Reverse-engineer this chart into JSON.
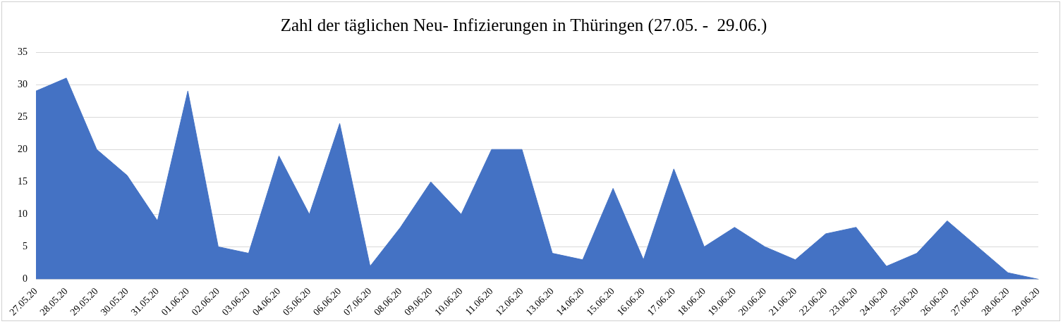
{
  "chart_data": {
    "type": "area",
    "title": "Zahl der täglichen Neu- Infizierungen in Thüringen (27.05. -  29.06.)",
    "categories": [
      "27.05.20",
      "28.05.20",
      "29.05.20",
      "30.05.20",
      "31.05.20",
      "01.06.20",
      "02.06.20",
      "03.06.20",
      "04.06.20",
      "05.06.20",
      "06.06.20",
      "07.06.20",
      "08.06.20",
      "09.06.20",
      "10.06.20",
      "11.06.20",
      "12.06.20",
      "13.06.20",
      "14.06.20",
      "15.06.20",
      "16.06.20",
      "17.06.20",
      "18.06.20",
      "19.06.20",
      "20.06.20",
      "21.06.20",
      "22.06.20",
      "23.06.20",
      "24.06.20",
      "25.06.20",
      "26.06.20",
      "27.06.20",
      "28.06.20",
      "29.06.20"
    ],
    "values": [
      29,
      31,
      20,
      16,
      9,
      29,
      5,
      4,
      19,
      10,
      24,
      2,
      8,
      15,
      10,
      20,
      20,
      4,
      3,
      14,
      3,
      17,
      5,
      8,
      5,
      3,
      7,
      8,
      2,
      4,
      9,
      5,
      1,
      0
    ],
    "color": "#4472c4",
    "ylim": [
      0,
      35
    ],
    "yticks": [
      0,
      5,
      10,
      15,
      20,
      25,
      30,
      35
    ],
    "grid": "y",
    "legend": false
  }
}
